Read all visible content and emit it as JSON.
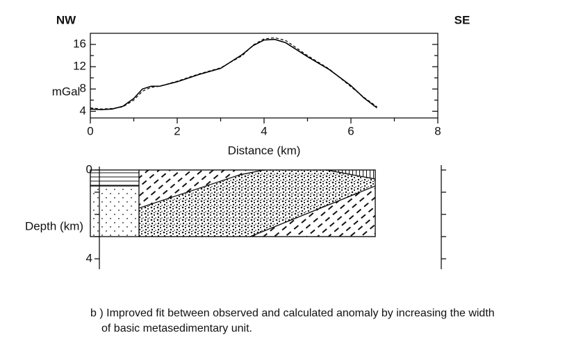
{
  "chart_data": [
    {
      "type": "line",
      "annotations": [
        "NW",
        "SE"
      ],
      "ylabel": "mGal",
      "xlabel": "Distance (km)",
      "xlim": [
        0,
        8
      ],
      "xticks": [
        0,
        2,
        4,
        6,
        8
      ],
      "xminor": [
        1,
        3,
        5,
        7
      ],
      "ylim": [
        2.8,
        18
      ],
      "yticks": [
        4,
        8,
        12,
        16
      ],
      "yminor": [
        6,
        10,
        14
      ],
      "x": [
        0,
        0.25,
        0.5,
        0.75,
        1.0,
        1.2,
        1.4,
        1.6,
        2.0,
        2.5,
        3.0,
        3.5,
        3.75,
        4.0,
        4.25,
        4.5,
        5.0,
        5.5,
        6.0,
        6.3,
        6.6
      ],
      "series": [
        {
          "color": "#000000",
          "style": "solid",
          "values": [
            4.4,
            4.3,
            4.4,
            4.9,
            6.3,
            8.0,
            8.5,
            8.5,
            9.3,
            10.6,
            11.7,
            14.2,
            15.8,
            16.8,
            16.9,
            16.3,
            13.8,
            11.5,
            8.6,
            6.4,
            4.6
          ]
        },
        {
          "color": "#000000",
          "style": "dashed",
          "values": [
            4.6,
            4.4,
            4.5,
            4.8,
            6.0,
            7.6,
            8.3,
            8.5,
            9.4,
            10.7,
            11.8,
            14.0,
            15.9,
            17.0,
            17.2,
            16.7,
            14.0,
            11.6,
            8.4,
            6.5,
            4.8
          ]
        }
      ]
    },
    {
      "type": "section",
      "ylabel": "Depth (km)",
      "ylim": [
        0,
        4.4
      ],
      "yticks": [
        0,
        4
      ],
      "yminor": [
        1,
        2,
        3
      ]
    }
  ],
  "caption_lines": [
    "b ) Improved fit between observed and calculated anomaly by increasing the width",
    "of basic metasedimentary unit."
  ]
}
